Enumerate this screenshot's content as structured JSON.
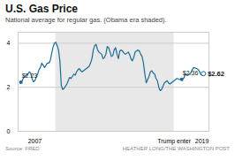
{
  "chart_data": {
    "type": "line",
    "title": "U.S. Gas Price",
    "subtitle": "National average for regular gas. (Obama era shaded).",
    "source": [
      "Source: FRED",
      "HEATHER LONG/THE WASHINGTON POST"
    ],
    "color": "#1a6b96",
    "grid": true,
    "marker": "o",
    "xlim": [
      2005.8,
      2019.5
    ],
    "xticks": [
      2007,
      {
        "value": 2017,
        "label": "Trump enter"
      },
      2019
    ],
    "ylim": [
      0,
      4.5
    ],
    "yticks": [
      0,
      2,
      4
    ],
    "shade": {
      "x1": 2008.5,
      "x2": 2017.0,
      "color": "#e8e8e8"
    },
    "annotations": [
      {
        "x": 2006.0,
        "y": 2.23,
        "label": "$2.23"
      },
      {
        "x": 2017.55,
        "y": 2.36,
        "label": "$2.36"
      },
      {
        "x": 2019.1,
        "y": 2.62,
        "label": "$2.62"
      }
    ],
    "x": [
      2006.0,
      2006.1,
      2006.2,
      2006.3,
      2006.4,
      2006.5,
      2006.6,
      2006.7,
      2006.8,
      2006.9,
      2007.0,
      2007.1,
      2007.2,
      2007.3,
      2007.4,
      2007.5,
      2007.6,
      2007.7,
      2007.8,
      2007.9,
      2008.0,
      2008.1,
      2008.2,
      2008.3,
      2008.4,
      2008.5,
      2008.6,
      2008.7,
      2008.8,
      2008.9,
      2009.0,
      2009.1,
      2009.2,
      2009.3,
      2009.4,
      2009.5,
      2009.6,
      2009.7,
      2009.8,
      2009.9,
      2010.0,
      2010.1,
      2010.2,
      2010.3,
      2010.4,
      2010.5,
      2010.6,
      2010.7,
      2010.8,
      2010.9,
      2011.0,
      2011.1,
      2011.2,
      2011.3,
      2011.4,
      2011.5,
      2011.6,
      2011.7,
      2011.8,
      2011.9,
      2012.0,
      2012.1,
      2012.2,
      2012.3,
      2012.4,
      2012.5,
      2012.6,
      2012.7,
      2012.8,
      2012.9,
      2013.0,
      2013.1,
      2013.2,
      2013.3,
      2013.4,
      2013.5,
      2013.6,
      2013.7,
      2013.8,
      2013.9,
      2014.0,
      2014.1,
      2014.2,
      2014.3,
      2014.4,
      2014.5,
      2014.6,
      2014.7,
      2014.8,
      2014.9,
      2015.0,
      2015.1,
      2015.2,
      2015.3,
      2015.4,
      2015.5,
      2015.6,
      2015.7,
      2015.8,
      2015.9,
      2016.0,
      2016.1,
      2016.2,
      2016.3,
      2016.4,
      2016.5,
      2016.6,
      2016.7,
      2016.8,
      2016.9,
      2017.0,
      2017.1,
      2017.2,
      2017.3,
      2017.4,
      2017.5,
      2017.6,
      2017.7,
      2017.8,
      2017.9,
      2018.0,
      2018.1,
      2018.2,
      2018.3,
      2018.4,
      2018.5,
      2018.6,
      2018.7,
      2018.8,
      2018.9,
      2019.0,
      2019.1
    ],
    "values": [
      2.23,
      2.3,
      2.45,
      2.5,
      2.55,
      2.6,
      2.7,
      2.65,
      2.4,
      2.25,
      2.3,
      2.45,
      2.6,
      2.8,
      2.9,
      3.1,
      3.0,
      2.9,
      3.0,
      3.1,
      3.1,
      3.2,
      3.5,
      3.8,
      4.0,
      4.05,
      3.9,
      3.7,
      3.2,
      2.1,
      1.9,
      1.95,
      2.05,
      2.15,
      2.3,
      2.45,
      2.4,
      2.5,
      2.6,
      2.55,
      2.7,
      2.8,
      2.85,
      2.75,
      2.7,
      2.75,
      2.8,
      2.85,
      2.9,
      2.95,
      3.1,
      3.3,
      3.7,
      3.9,
      3.95,
      3.7,
      3.6,
      3.55,
      3.5,
      3.3,
      3.35,
      3.5,
      3.85,
      3.8,
      3.6,
      3.4,
      3.45,
      3.7,
      3.8,
      3.5,
      3.3,
      3.65,
      3.7,
      3.65,
      3.55,
      3.5,
      3.55,
      3.6,
      3.5,
      3.3,
      3.2,
      3.35,
      3.6,
      3.65,
      3.7,
      3.65,
      3.5,
      3.4,
      3.1,
      2.6,
      2.2,
      2.35,
      2.5,
      2.7,
      2.75,
      2.65,
      2.6,
      2.4,
      2.3,
      2.0,
      1.85,
      1.9,
      2.05,
      2.2,
      2.25,
      2.3,
      2.2,
      2.15,
      2.2,
      2.25,
      2.3,
      2.35,
      2.4,
      2.38,
      2.35,
      2.36,
      2.38,
      2.42,
      2.6,
      2.55,
      2.55,
      2.6,
      2.65,
      2.8,
      2.9,
      2.88,
      2.85,
      2.82,
      2.75,
      2.6,
      2.55,
      2.62
    ]
  }
}
